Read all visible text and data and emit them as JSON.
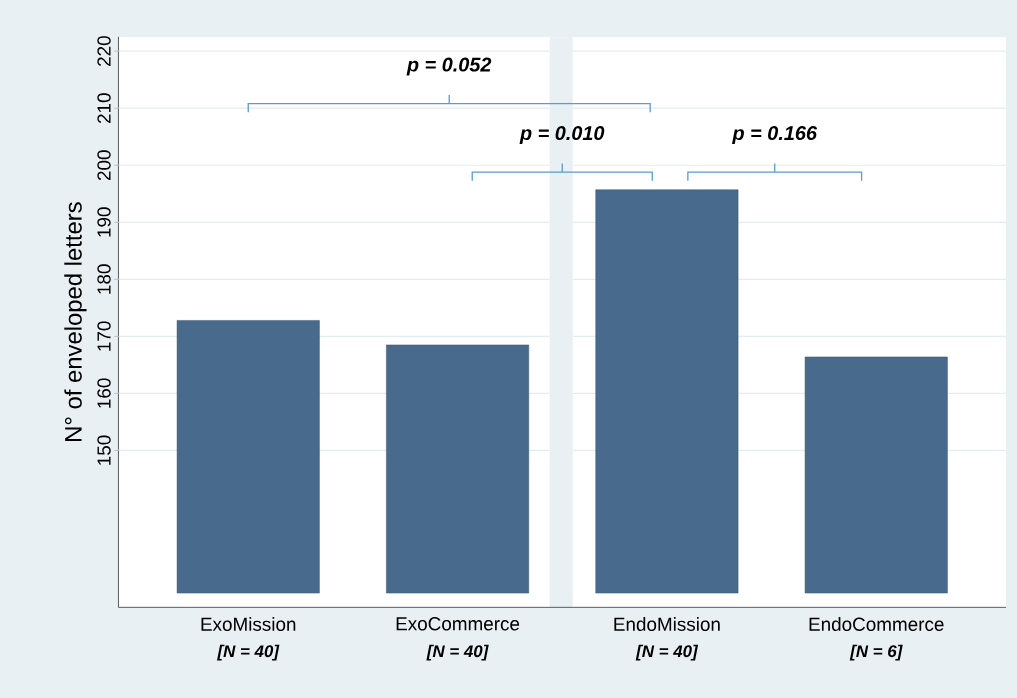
{
  "chart_data": {
    "type": "bar",
    "ylabel": "N° of enveloped letters",
    "categories": [
      "ExoMission",
      "ExoCommerce",
      "EndoMission",
      "EndoCommerce"
    ],
    "values": [
      47.8,
      43.5,
      70.7,
      41.4
    ],
    "base": [
      125,
      125,
      125,
      125
    ],
    "color": "#486a8c",
    "ylim": [
      122.5,
      222.5
    ],
    "yticks": [
      150,
      160,
      170,
      180,
      190,
      200,
      210,
      220
    ],
    "grid": "y",
    "annotations": [
      "p = 0.052",
      "p = 0.010",
      "p = 0.166",
      "[N = 40]",
      "[N = 40]",
      "[N = 40]",
      "[N = 6]"
    ]
  }
}
